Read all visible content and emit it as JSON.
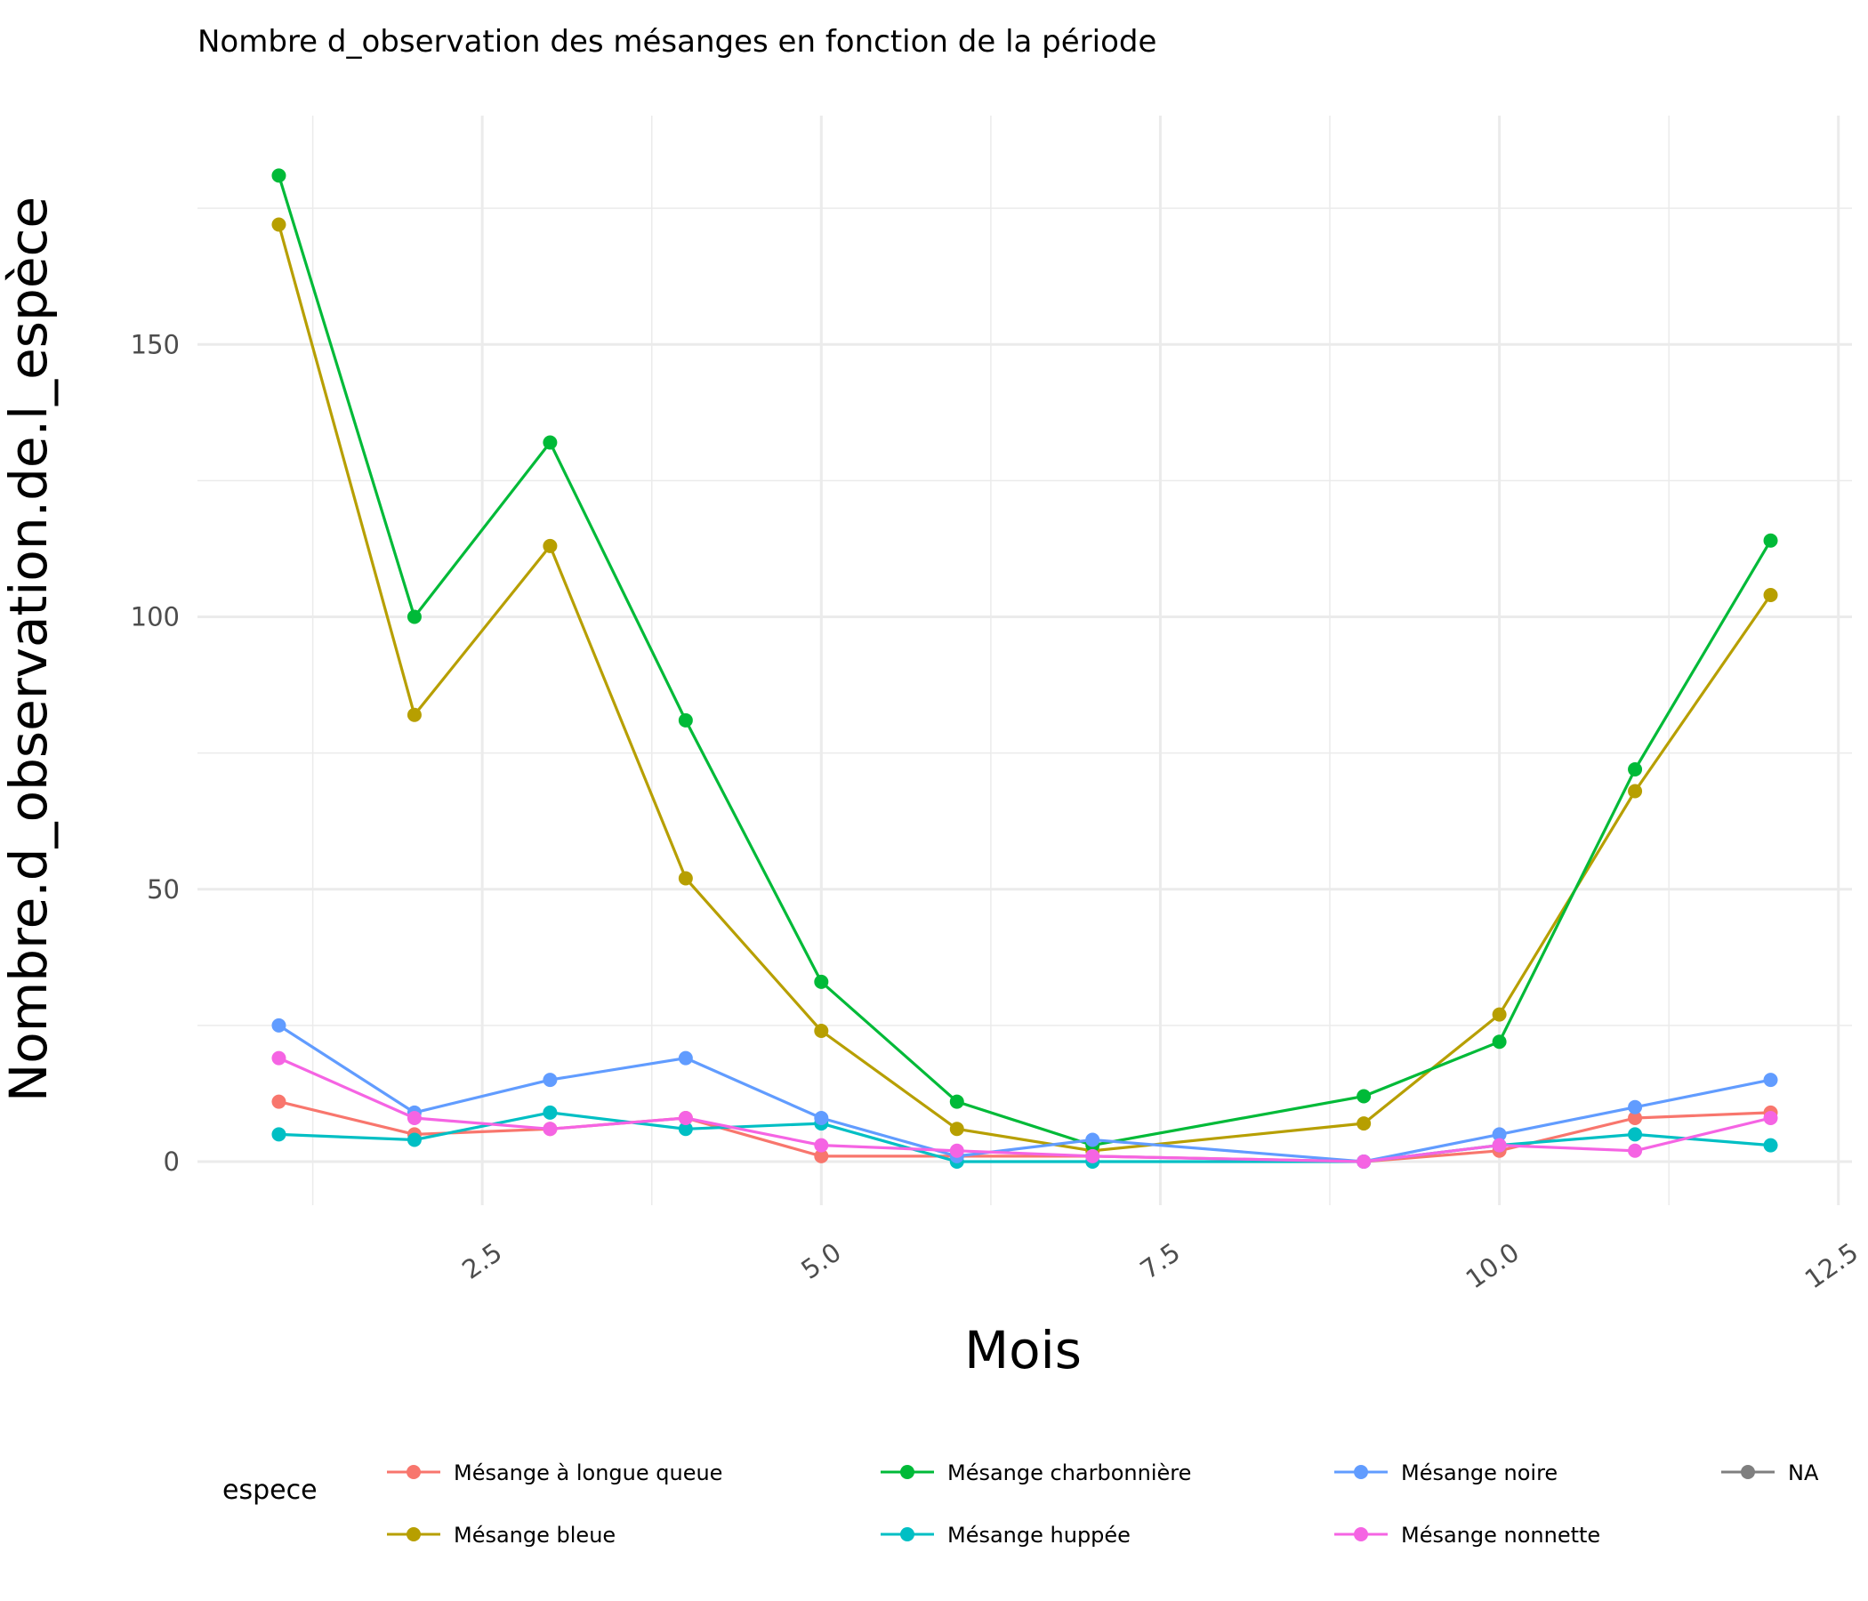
{
  "chart_data": {
    "type": "line",
    "title": "Nombre d_observation des mésanges en fonction de la période",
    "xlabel": "Mois",
    "ylabel": "Nombre.d_observation.de.l_espèce",
    "xlim": [
      0.4,
      12.6
    ],
    "ylim": [
      -8,
      192
    ],
    "x_ticks": [
      2.5,
      5.0,
      7.5,
      10.0,
      12.5
    ],
    "x_tick_labels": [
      "2.5",
      "5.0",
      "7.5",
      "10.0",
      "12.5"
    ],
    "y_ticks": [
      0,
      50,
      100,
      150
    ],
    "y_tick_labels": [
      "0",
      "50",
      "100",
      "150"
    ],
    "grid": true,
    "legend": {
      "title": "espece",
      "position": "bottom",
      "entries": [
        "Mésange à longue queue",
        "Mésange bleue",
        "Mésange charbonnière",
        "Mésange huppée",
        "Mésange noire",
        "Mésange nonnette",
        "NA"
      ]
    },
    "series": [
      {
        "name": "Mésange à longue queue",
        "color": "#F8766D",
        "x": [
          1,
          2,
          3,
          4,
          5,
          6,
          7,
          9,
          10,
          11,
          12
        ],
        "y": [
          11,
          5,
          6,
          8,
          1,
          1,
          1,
          0,
          2,
          8,
          9
        ]
      },
      {
        "name": "Mésange bleue",
        "color": "#B79F00",
        "x": [
          1,
          2,
          3,
          4,
          5,
          6,
          7,
          9,
          10,
          11,
          12
        ],
        "y": [
          172,
          82,
          113,
          52,
          24,
          6,
          2,
          7,
          27,
          68,
          104
        ]
      },
      {
        "name": "Mésange charbonnière",
        "color": "#00BA38",
        "x": [
          1,
          2,
          3,
          4,
          5,
          6,
          7,
          9,
          10,
          11,
          12
        ],
        "y": [
          181,
          100,
          132,
          81,
          33,
          11,
          3,
          12,
          22,
          72,
          114
        ]
      },
      {
        "name": "Mésange huppée",
        "color": "#00BFC4",
        "x": [
          1,
          2,
          3,
          4,
          5,
          6,
          7,
          9,
          10,
          11,
          12
        ],
        "y": [
          5,
          4,
          9,
          6,
          7,
          0,
          0,
          0,
          3,
          5,
          3
        ]
      },
      {
        "name": "Mésange noire",
        "color": "#619CFF",
        "x": [
          1,
          2,
          3,
          4,
          5,
          6,
          7,
          9,
          10,
          11,
          12
        ],
        "y": [
          25,
          9,
          15,
          19,
          8,
          1,
          4,
          0,
          5,
          10,
          15
        ]
      },
      {
        "name": "Mésange nonnette",
        "color": "#F564E3",
        "x": [
          1,
          2,
          3,
          4,
          5,
          6,
          7,
          9,
          10,
          11,
          12
        ],
        "y": [
          19,
          8,
          6,
          8,
          3,
          2,
          1,
          0,
          3,
          2,
          8
        ]
      },
      {
        "name": "NA",
        "color": "#7F7F7F",
        "x": [],
        "y": []
      }
    ]
  }
}
